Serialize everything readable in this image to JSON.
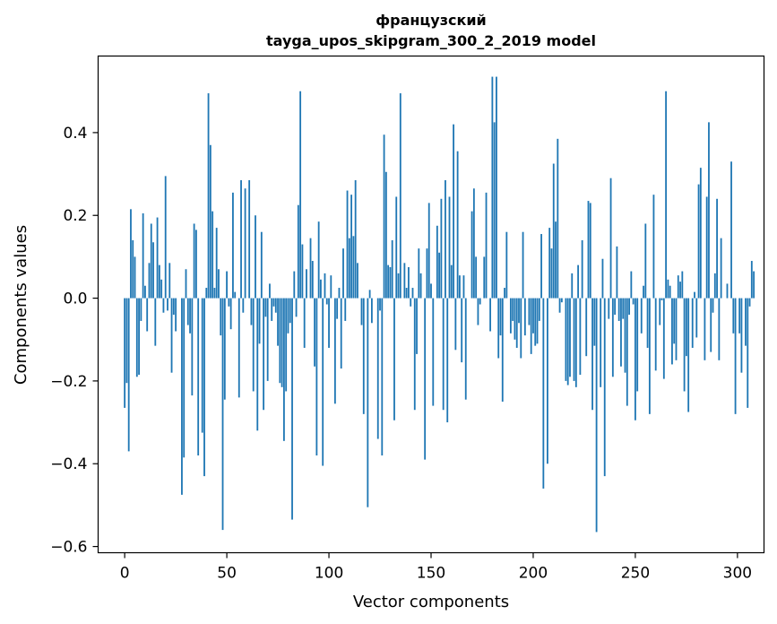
{
  "chart_data": {
    "type": "bar",
    "title": "французский",
    "subtitle": "tayga_upos_skipgram_300_2_2019 model",
    "xlabel": "Vector components",
    "ylabel": "Components values",
    "xlim": [
      -13,
      313
    ],
    "ylim": [
      -0.615,
      0.585
    ],
    "xticks": [
      0,
      50,
      100,
      150,
      200,
      250,
      300
    ],
    "xtick_labels": [
      "0",
      "50",
      "100",
      "150",
      "200",
      "250",
      "300"
    ],
    "yticks": [
      -0.6,
      -0.4,
      -0.2,
      0.0,
      0.2,
      0.4
    ],
    "ytick_labels": [
      "−0.6",
      "−0.4",
      "−0.2",
      "0.0",
      "0.2",
      "0.4"
    ],
    "bar_color": "#1f77b4",
    "grid": false,
    "legend": "none",
    "x_start": 0,
    "values": [
      -0.265,
      -0.205,
      -0.37,
      0.215,
      0.14,
      0.1,
      -0.19,
      -0.185,
      -0.055,
      0.205,
      0.03,
      -0.08,
      0.085,
      0.18,
      0.135,
      -0.115,
      0.195,
      0.08,
      0.045,
      -0.035,
      0.295,
      -0.03,
      0.085,
      -0.18,
      -0.04,
      -0.08,
      0.0,
      0.0,
      -0.475,
      -0.385,
      0.07,
      -0.065,
      -0.085,
      -0.235,
      0.18,
      0.165,
      -0.38,
      0.0,
      -0.325,
      -0.43,
      0.025,
      0.495,
      0.37,
      0.21,
      0.025,
      0.17,
      0.07,
      -0.09,
      -0.56,
      -0.245,
      0.065,
      -0.02,
      -0.075,
      0.255,
      0.015,
      0.0,
      -0.24,
      0.285,
      -0.035,
      0.265,
      0.0,
      0.285,
      -0.065,
      -0.225,
      0.2,
      -0.32,
      -0.11,
      0.16,
      -0.27,
      -0.045,
      -0.2,
      0.035,
      -0.055,
      -0.02,
      -0.035,
      -0.115,
      -0.205,
      -0.215,
      -0.345,
      -0.225,
      -0.085,
      -0.06,
      -0.535,
      0.065,
      -0.045,
      0.225,
      0.5,
      0.13,
      -0.12,
      0.07,
      0.0,
      0.145,
      0.09,
      -0.165,
      -0.38,
      0.185,
      0.045,
      -0.405,
      0.06,
      -0.015,
      -0.12,
      0.055,
      0.0,
      -0.255,
      -0.05,
      0.025,
      -0.17,
      0.12,
      -0.055,
      0.26,
      0.145,
      0.25,
      0.15,
      0.285,
      0.085,
      0.0,
      -0.065,
      -0.28,
      0.0,
      -0.505,
      0.02,
      -0.06,
      0.0,
      0.0,
      -0.34,
      -0.03,
      -0.38,
      0.395,
      0.305,
      0.08,
      0.075,
      0.14,
      -0.295,
      0.245,
      0.06,
      0.495,
      0.0,
      0.085,
      0.025,
      0.075,
      -0.02,
      0.025,
      -0.27,
      -0.135,
      0.12,
      0.06,
      0.0,
      -0.39,
      0.12,
      0.23,
      0.035,
      -0.26,
      0.0,
      0.175,
      0.11,
      0.24,
      -0.27,
      0.285,
      -0.3,
      0.245,
      0.08,
      0.42,
      -0.125,
      0.355,
      0.055,
      -0.155,
      0.055,
      -0.245,
      0.0,
      0.0,
      0.21,
      0.265,
      0.1,
      -0.065,
      -0.015,
      0.0,
      0.1,
      0.255,
      0.0,
      -0.08,
      0.535,
      0.425,
      0.535,
      -0.145,
      -0.09,
      -0.25,
      0.025,
      0.16,
      0.0,
      -0.085,
      -0.055,
      -0.1,
      -0.12,
      -0.06,
      -0.145,
      0.16,
      -0.09,
      0.0,
      -0.065,
      -0.135,
      -0.085,
      -0.115,
      -0.11,
      -0.055,
      0.155,
      -0.46,
      0.0,
      -0.4,
      0.17,
      0.12,
      0.325,
      0.185,
      0.385,
      -0.035,
      -0.01,
      0.0,
      -0.2,
      -0.21,
      -0.19,
      0.06,
      -0.2,
      -0.215,
      0.08,
      -0.185,
      0.14,
      0.0,
      -0.14,
      0.235,
      0.23,
      -0.27,
      -0.115,
      -0.565,
      0.0,
      -0.215,
      0.095,
      -0.43,
      0.0,
      -0.05,
      0.29,
      -0.19,
      -0.04,
      0.125,
      -0.055,
      -0.165,
      -0.05,
      -0.18,
      -0.26,
      -0.04,
      0.065,
      -0.015,
      -0.295,
      -0.225,
      0.0,
      -0.085,
      0.03,
      0.18,
      -0.12,
      -0.28,
      0.0,
      0.25,
      -0.175,
      0.0,
      -0.065,
      -0.005,
      -0.195,
      0.5,
      0.045,
      0.03,
      -0.16,
      -0.11,
      -0.15,
      0.055,
      0.04,
      0.065,
      -0.225,
      -0.14,
      -0.275,
      0.0,
      -0.12,
      0.015,
      -0.095,
      0.275,
      0.315,
      0.0,
      -0.15,
      0.245,
      0.425,
      -0.13,
      -0.035,
      0.06,
      0.24,
      -0.15,
      0.145,
      0.0,
      0.0,
      0.035,
      0.0,
      0.33,
      -0.085,
      -0.28,
      0.0,
      -0.085,
      -0.18,
      0.0,
      -0.115,
      -0.265,
      -0.02,
      0.09,
      0.065,
      0.0
    ]
  }
}
